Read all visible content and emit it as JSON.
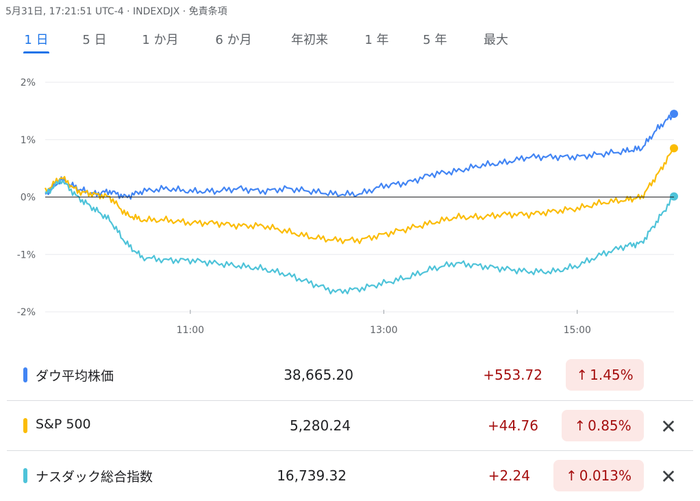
{
  "header": {
    "text": "5月31日, 17:21:51 UTC-4 · INDEXDJX · 免責条項"
  },
  "tabs": [
    {
      "label": "1 日",
      "active": true
    },
    {
      "label": "5 日"
    },
    {
      "label": "1 か月"
    },
    {
      "label": "6 か月"
    },
    {
      "label": "年初来"
    },
    {
      "label": "1 年"
    },
    {
      "label": "5 年"
    },
    {
      "label": "最大"
    }
  ],
  "colors": {
    "dow": "#4285f4",
    "sp": "#fbbc04",
    "nasdaq": "#4ec3d9",
    "baseline": "#202124",
    "grid": "#e8eaed",
    "positive": "#a50e0e",
    "positive_bg": "#fce8e6"
  },
  "chart_data": {
    "type": "line",
    "xlabel": "",
    "ylabel": "",
    "x_range": [
      "09:30",
      "16:00"
    ],
    "y_range": [
      -2,
      2
    ],
    "y_ticks": [
      "2%",
      "1%",
      "0%",
      "-1%",
      "-2%"
    ],
    "x_ticks": [
      "11:00",
      "13:00",
      "15:00"
    ],
    "series": [
      {
        "name": "ダウ平均株価",
        "color": "#4285f4",
        "points": [
          [
            "09:30",
            0.05
          ],
          [
            "09:40",
            0.3
          ],
          [
            "09:50",
            0.15
          ],
          [
            "10:00",
            0.05
          ],
          [
            "10:10",
            0.1
          ],
          [
            "10:20",
            0.0
          ],
          [
            "10:30",
            0.1
          ],
          [
            "10:45",
            0.15
          ],
          [
            "11:00",
            0.1
          ],
          [
            "11:15",
            0.1
          ],
          [
            "11:30",
            0.15
          ],
          [
            "11:45",
            0.1
          ],
          [
            "12:00",
            0.15
          ],
          [
            "12:15",
            0.1
          ],
          [
            "12:30",
            0.05
          ],
          [
            "12:45",
            0.05
          ],
          [
            "13:00",
            0.2
          ],
          [
            "13:15",
            0.25
          ],
          [
            "13:30",
            0.4
          ],
          [
            "13:45",
            0.45
          ],
          [
            "14:00",
            0.55
          ],
          [
            "14:15",
            0.6
          ],
          [
            "14:30",
            0.7
          ],
          [
            "14:45",
            0.7
          ],
          [
            "15:00",
            0.7
          ],
          [
            "15:15",
            0.75
          ],
          [
            "15:30",
            0.8
          ],
          [
            "15:40",
            0.85
          ],
          [
            "15:50",
            1.2
          ],
          [
            "16:00",
            1.45
          ]
        ]
      },
      {
        "name": "S&P 500",
        "color": "#fbbc04",
        "points": [
          [
            "09:30",
            0.1
          ],
          [
            "09:40",
            0.35
          ],
          [
            "09:50",
            0.1
          ],
          [
            "10:00",
            0.05
          ],
          [
            "10:10",
            0.0
          ],
          [
            "10:20",
            -0.3
          ],
          [
            "10:30",
            -0.4
          ],
          [
            "10:45",
            -0.4
          ],
          [
            "11:00",
            -0.45
          ],
          [
            "11:15",
            -0.45
          ],
          [
            "11:30",
            -0.5
          ],
          [
            "11:45",
            -0.5
          ],
          [
            "12:00",
            -0.6
          ],
          [
            "12:15",
            -0.7
          ],
          [
            "12:30",
            -0.75
          ],
          [
            "12:45",
            -0.75
          ],
          [
            "13:00",
            -0.65
          ],
          [
            "13:15",
            -0.55
          ],
          [
            "13:30",
            -0.45
          ],
          [
            "13:45",
            -0.35
          ],
          [
            "14:00",
            -0.35
          ],
          [
            "14:15",
            -0.3
          ],
          [
            "14:30",
            -0.3
          ],
          [
            "14:45",
            -0.25
          ],
          [
            "15:00",
            -0.2
          ],
          [
            "15:15",
            -0.1
          ],
          [
            "15:30",
            -0.05
          ],
          [
            "15:40",
            0.0
          ],
          [
            "15:50",
            0.4
          ],
          [
            "16:00",
            0.85
          ]
        ]
      },
      {
        "name": "ナスダック総合指数",
        "color": "#4ec3d9",
        "points": [
          [
            "09:30",
            0.05
          ],
          [
            "09:40",
            0.3
          ],
          [
            "09:50",
            0.0
          ],
          [
            "10:00",
            -0.2
          ],
          [
            "10:10",
            -0.4
          ],
          [
            "10:20",
            -0.8
          ],
          [
            "10:30",
            -1.05
          ],
          [
            "10:45",
            -1.1
          ],
          [
            "11:00",
            -1.1
          ],
          [
            "11:15",
            -1.15
          ],
          [
            "11:30",
            -1.2
          ],
          [
            "11:45",
            -1.25
          ],
          [
            "12:00",
            -1.35
          ],
          [
            "12:15",
            -1.5
          ],
          [
            "12:30",
            -1.65
          ],
          [
            "12:45",
            -1.6
          ],
          [
            "13:00",
            -1.5
          ],
          [
            "13:15",
            -1.4
          ],
          [
            "13:30",
            -1.25
          ],
          [
            "13:45",
            -1.15
          ],
          [
            "14:00",
            -1.2
          ],
          [
            "14:15",
            -1.25
          ],
          [
            "14:30",
            -1.3
          ],
          [
            "14:45",
            -1.3
          ],
          [
            "15:00",
            -1.2
          ],
          [
            "15:15",
            -1.0
          ],
          [
            "15:30",
            -0.85
          ],
          [
            "15:40",
            -0.8
          ],
          [
            "15:50",
            -0.4
          ],
          [
            "16:00",
            0.01
          ]
        ]
      }
    ]
  },
  "rows": [
    {
      "name": "ダウ平均株価",
      "price": "38,665.20",
      "change": "+553.72",
      "arrow": "↑",
      "pct": "1.45%",
      "color": "#4285f4",
      "removable": false
    },
    {
      "name": "S&P 500",
      "price": "5,280.24",
      "change": "+44.76",
      "arrow": "↑",
      "pct": "0.85%",
      "color": "#fbbc04",
      "removable": true
    },
    {
      "name": "ナスダック総合指数",
      "price": "16,739.32",
      "change": "+2.24",
      "arrow": "↑",
      "pct": "0.013%",
      "color": "#4ec3d9",
      "removable": true
    }
  ],
  "close_icon": "close-icon"
}
